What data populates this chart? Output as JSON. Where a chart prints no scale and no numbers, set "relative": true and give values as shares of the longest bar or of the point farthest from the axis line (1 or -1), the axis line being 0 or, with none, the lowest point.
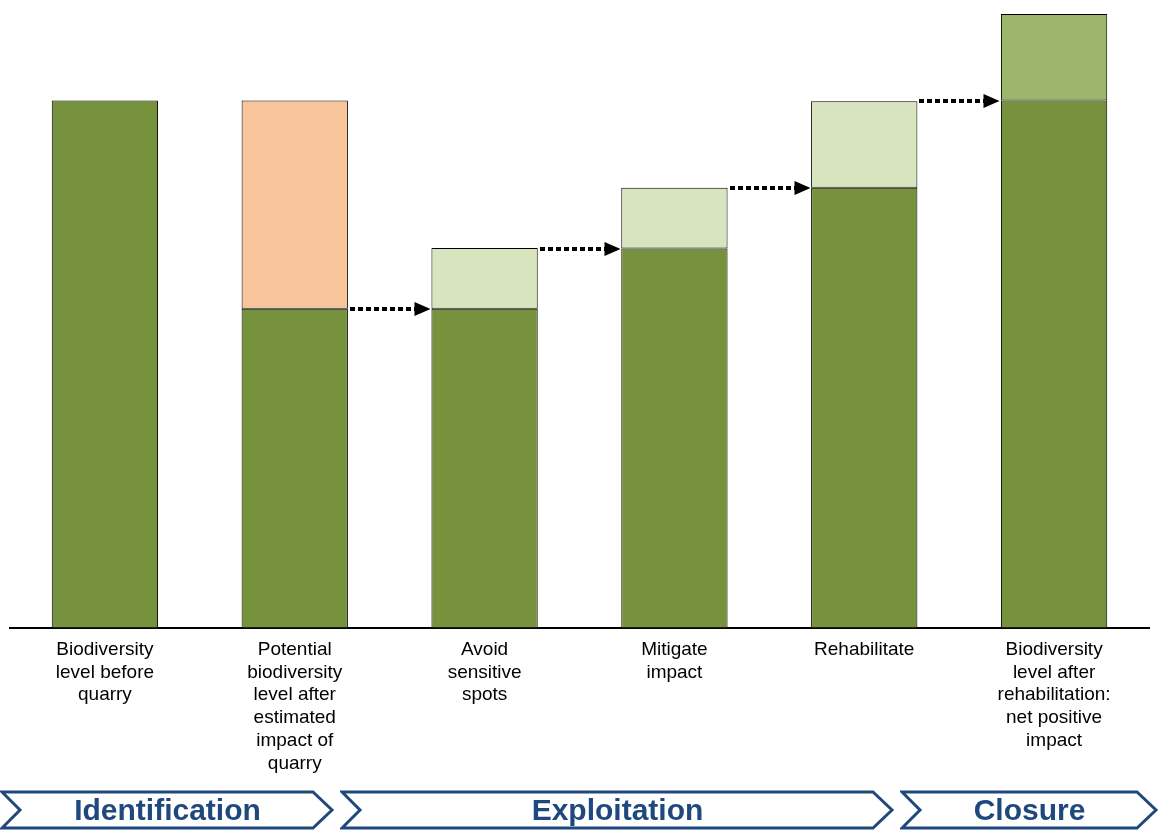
{
  "chart_data": {
    "type": "bar",
    "relative": true,
    "stacked": true,
    "legend": false,
    "grid": false,
    "categories": [
      "Biodiversity level before quarry",
      "Potential biodiversity level after estimated impact of quarry",
      "Avoid sensitive spots",
      "Mitigate impact",
      "Rehabilitate",
      "Biodiversity level after rehabilitation: net positive impact"
    ],
    "series": [
      {
        "color": "#76923c",
        "values": [
          0.859,
          0.52,
          0.52,
          0.618,
          0.717,
          0.859
        ]
      },
      {
        "color": "#d7e4bd",
        "values": [
          null,
          null,
          0.099,
          0.099,
          0.141,
          null
        ]
      },
      {
        "color": "#f8c49a",
        "values": [
          null,
          0.339,
          null,
          null,
          null,
          null
        ]
      },
      {
        "color": "#9bb56a",
        "values": [
          null,
          null,
          null,
          null,
          null,
          0.141
        ]
      }
    ],
    "annotations": [
      "Identification",
      "Exploitation",
      "Closure"
    ]
  }
}
